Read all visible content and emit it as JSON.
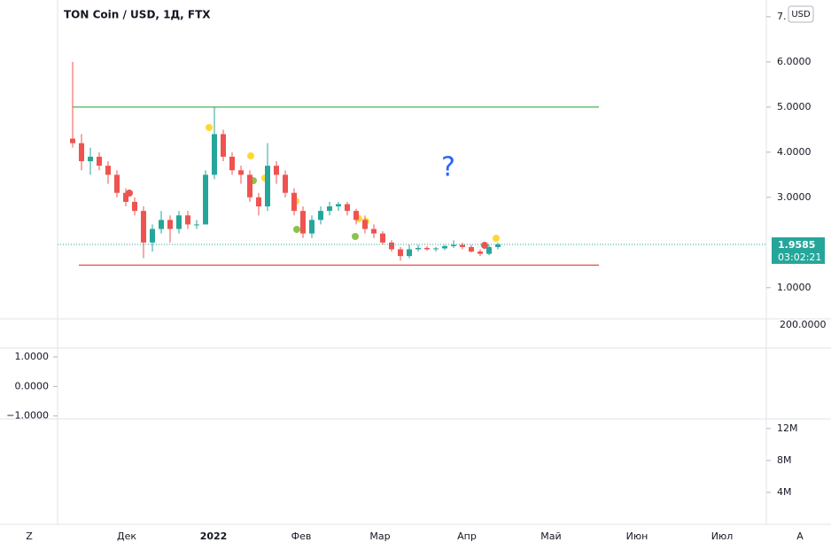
{
  "header": {
    "title": "TON Coin / USD, 1Д, FTX",
    "currency": "USD"
  },
  "chart_data": {
    "type": "candlestick",
    "ohlc": [
      [
        4.3,
        6.0,
        4.1,
        4.2
      ],
      [
        4.2,
        4.4,
        3.6,
        3.8
      ],
      [
        3.8,
        4.1,
        3.5,
        3.9
      ],
      [
        3.9,
        4.0,
        3.6,
        3.7
      ],
      [
        3.7,
        3.8,
        3.3,
        3.5
      ],
      [
        3.5,
        3.6,
        3.0,
        3.1
      ],
      [
        3.1,
        3.2,
        2.8,
        2.9
      ],
      [
        2.9,
        3.0,
        2.6,
        2.7
      ],
      [
        2.7,
        2.8,
        1.65,
        2.0
      ],
      [
        2.0,
        2.4,
        1.8,
        2.3
      ],
      [
        2.3,
        2.7,
        2.2,
        2.5
      ],
      [
        2.5,
        2.6,
        2.0,
        2.3
      ],
      [
        2.3,
        2.7,
        2.2,
        2.6
      ],
      [
        2.6,
        2.7,
        2.3,
        2.4
      ],
      [
        2.4,
        2.5,
        2.3,
        2.4
      ],
      [
        2.4,
        3.6,
        2.4,
        3.5
      ],
      [
        3.5,
        5.0,
        3.4,
        4.4
      ],
      [
        4.4,
        4.5,
        3.8,
        3.9
      ],
      [
        3.9,
        4.0,
        3.5,
        3.6
      ],
      [
        3.6,
        3.7,
        3.3,
        3.5
      ],
      [
        3.5,
        3.6,
        2.9,
        3.0
      ],
      [
        3.0,
        3.1,
        2.6,
        2.8
      ],
      [
        2.8,
        4.2,
        2.7,
        3.7
      ],
      [
        3.7,
        3.8,
        3.3,
        3.5
      ],
      [
        3.5,
        3.6,
        3.0,
        3.1
      ],
      [
        3.1,
        3.2,
        2.6,
        2.7
      ],
      [
        2.7,
        2.8,
        2.1,
        2.2
      ],
      [
        2.2,
        2.6,
        2.1,
        2.5
      ],
      [
        2.5,
        2.8,
        2.4,
        2.7
      ],
      [
        2.7,
        2.9,
        2.6,
        2.8
      ],
      [
        2.8,
        2.9,
        2.7,
        2.85
      ],
      [
        2.85,
        2.9,
        2.6,
        2.7
      ],
      [
        2.7,
        2.75,
        2.4,
        2.5
      ],
      [
        2.5,
        2.6,
        2.2,
        2.3
      ],
      [
        2.3,
        2.4,
        2.1,
        2.2
      ],
      [
        2.2,
        2.25,
        1.95,
        2.0
      ],
      [
        2.0,
        2.05,
        1.8,
        1.85
      ],
      [
        1.85,
        1.9,
        1.6,
        1.7
      ],
      [
        1.7,
        1.95,
        1.65,
        1.85
      ],
      [
        1.85,
        1.95,
        1.8,
        1.88
      ],
      [
        1.88,
        1.92,
        1.82,
        1.85
      ],
      [
        1.85,
        1.9,
        1.8,
        1.87
      ],
      [
        1.87,
        1.95,
        1.83,
        1.92
      ],
      [
        1.92,
        2.05,
        1.88,
        1.95
      ],
      [
        1.95,
        2.0,
        1.85,
        1.9
      ],
      [
        1.9,
        1.95,
        1.78,
        1.8
      ],
      [
        1.8,
        1.85,
        1.7,
        1.75
      ],
      [
        1.75,
        1.95,
        1.72,
        1.9
      ],
      [
        1.9,
        2.0,
        1.85,
        1.9585
      ]
    ],
    "up_color": "#26a69a",
    "down_color": "#ef5350",
    "ylim": [
      0.31,
      7.37
    ],
    "yticks": [
      {
        "value": 7,
        "label": "7."
      },
      {
        "value": 6,
        "label": "6.0000"
      },
      {
        "value": 5,
        "label": "5.0000"
      },
      {
        "value": 4,
        "label": "4.0000"
      },
      {
        "value": 3,
        "label": "3.0000"
      },
      {
        "value": 1,
        "label": "1.0000"
      }
    ],
    "extra_scale_label": "200.0000",
    "levels": [
      {
        "value": 5.0,
        "color": "#4caf50"
      },
      {
        "value": 1.5,
        "color": "#e53935"
      }
    ],
    "annotation": "?",
    "last_price": 1.9585,
    "countdown": "03:02:21",
    "last_color": "#26a69a",
    "x_labels": [
      "Дек",
      "2022",
      "Фев",
      "Мар",
      "Апр",
      "Май",
      "Июн",
      "Июл"
    ],
    "indicator": {
      "ylim": [
        -1.1,
        1.3
      ],
      "yticks": [
        {
          "value": 1,
          "label": "1.0000"
        },
        {
          "value": 0,
          "label": "0.0000"
        },
        {
          "value": -1,
          "label": "−1.0000"
        }
      ]
    },
    "volume": {
      "ylim": [
        0,
        13200000
      ],
      "yticks": [
        {
          "value": 12000000,
          "label": "12M"
        },
        {
          "value": 8000000,
          "label": "8M"
        },
        {
          "value": 4000000,
          "label": "4M"
        }
      ]
    }
  },
  "footer": {
    "left": "Z",
    "right": "A"
  }
}
